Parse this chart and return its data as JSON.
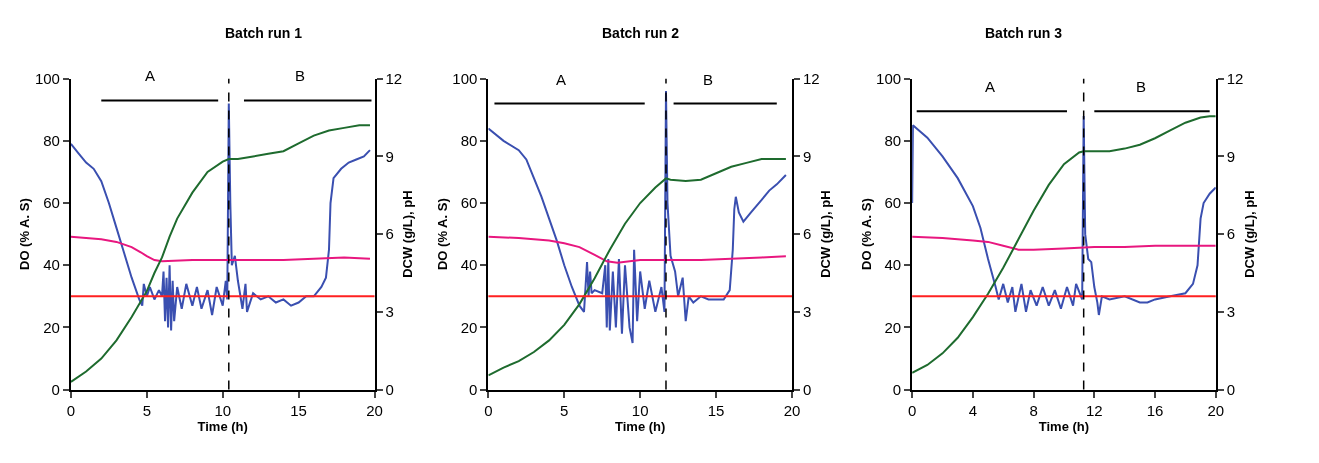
{
  "chart_data": [
    {
      "type": "line",
      "title": "Batch run 1",
      "xlabel": "Time (h)",
      "ylabel": "DO (% A. S)",
      "y2label": "DCW (g/L), pH",
      "xlim": [
        0,
        20
      ],
      "xticks": [
        0,
        5,
        10,
        15,
        20
      ],
      "ylim": [
        0,
        100
      ],
      "yticks": [
        0,
        20,
        40,
        60,
        80,
        100
      ],
      "y2lim": [
        0,
        12
      ],
      "y2ticks": [
        0,
        3,
        6,
        9,
        12
      ],
      "series": [
        {
          "color": "#3a4fb0",
          "x": [
            0,
            0.5,
            1,
            1.5,
            2,
            2.5,
            3,
            3.5,
            4,
            4.5,
            4.7,
            4.8,
            5,
            5.2,
            5.5,
            5.8,
            6.0,
            6.1,
            6.2,
            6.3,
            6.4,
            6.5,
            6.6,
            6.7,
            6.8,
            7,
            7.3,
            7.6,
            8,
            8.3,
            8.6,
            9,
            9.3,
            9.6,
            10,
            10.2,
            10.3,
            10.4,
            10.5,
            10.6,
            10.8,
            11,
            11.3,
            11.5,
            11.6,
            12,
            12.5,
            13,
            13.5,
            14,
            14.5,
            15,
            15.5,
            16,
            16.5,
            16.8,
            17.0,
            17.1,
            17.3,
            17.8,
            18.3,
            18.8,
            19.3,
            19.7
          ],
          "values": [
            79,
            76,
            73,
            71,
            67,
            60,
            52,
            44,
            36,
            29,
            27,
            34,
            30,
            33,
            29,
            32,
            30,
            38,
            22,
            36,
            20,
            40,
            19,
            35,
            22,
            33,
            26,
            34,
            27,
            33,
            26,
            32,
            24,
            33,
            27,
            35,
            29,
            92,
            60,
            40,
            43,
            35,
            26,
            34,
            25,
            31,
            29,
            30,
            28,
            29,
            27,
            28,
            30,
            30,
            33,
            36,
            45,
            60,
            68,
            71,
            73,
            74,
            75,
            77
          ]
        },
        {
          "color": "#e8177f",
          "axis": "y2",
          "x": [
            0,
            1,
            2,
            3,
            4,
            4.6,
            5,
            5.5,
            6,
            8,
            10,
            12,
            14,
            16,
            18,
            19.7
          ],
          "values": [
            5.9,
            5.85,
            5.8,
            5.7,
            5.5,
            5.3,
            5.15,
            5.0,
            4.95,
            5.0,
            5.0,
            5.0,
            5.0,
            5.05,
            5.1,
            5.05
          ]
        },
        {
          "color": "#1e6b2e",
          "axis": "y2",
          "x": [
            0,
            1,
            2,
            3,
            4,
            5,
            5.5,
            6,
            6.5,
            7,
            8,
            9,
            10,
            10.4,
            11,
            12,
            13,
            14,
            15,
            16,
            17,
            18,
            19,
            19.7
          ],
          "values": [
            0.3,
            0.7,
            1.2,
            1.9,
            2.8,
            3.8,
            4.5,
            5.1,
            5.9,
            6.6,
            7.6,
            8.4,
            8.8,
            8.9,
            8.9,
            9.0,
            9.1,
            9.2,
            9.5,
            9.8,
            10.0,
            10.1,
            10.2,
            10.2
          ]
        },
        {
          "color": "#000000",
          "x": [
            2,
            9.7
          ],
          "values": [
            93,
            93
          ]
        },
        {
          "color": "#000000",
          "x": [
            11.4,
            19.8
          ],
          "values": [
            93,
            93
          ]
        }
      ],
      "ref_lines": [
        {
          "axis": "y",
          "value": 30,
          "color": "#ff2020"
        },
        {
          "axis": "x",
          "value": 10.4,
          "color": "#000000",
          "line_style": "dashed"
        }
      ],
      "annotations": [
        {
          "text": "A",
          "x": 5.2,
          "y": 93
        },
        {
          "text": "B",
          "x": 15.1,
          "y": 93
        }
      ]
    },
    {
      "type": "line",
      "title": "Batch run 2",
      "xlabel": "Time (h)",
      "ylabel": "DO (% A. S)",
      "y2label": "DCW (g/L), pH",
      "xlim": [
        0,
        20
      ],
      "xticks": [
        0,
        5,
        10,
        15,
        20
      ],
      "ylim": [
        0,
        100
      ],
      "yticks": [
        0,
        20,
        40,
        60,
        80,
        100
      ],
      "y2lim": [
        0,
        12
      ],
      "y2ticks": [
        0,
        3,
        6,
        9,
        12
      ],
      "series": [
        {
          "color": "#3a4fb0",
          "x": [
            0,
            1,
            2,
            2.5,
            3,
            3.5,
            4,
            4.5,
            5,
            5.5,
            6,
            6.3,
            6.5,
            6.6,
            6.7,
            6.8,
            7,
            7.5,
            7.7,
            7.8,
            7.9,
            8.0,
            8.2,
            8.4,
            8.6,
            8.8,
            9,
            9.3,
            9.5,
            9.6,
            9.8,
            10,
            10.3,
            10.6,
            11,
            11.4,
            11.6,
            11.7,
            11.8,
            12,
            12.3,
            12.5,
            12.8,
            13,
            13.2,
            13.5,
            14,
            14.5,
            15,
            15.5,
            15.9,
            16.1,
            16.2,
            16.3,
            16.5,
            16.8,
            17.3,
            18,
            18.5,
            19,
            19.6
          ],
          "values": [
            84,
            80,
            77,
            74,
            68,
            62,
            55,
            48,
            40,
            33,
            27,
            25,
            41,
            30,
            38,
            31,
            32,
            31,
            40,
            20,
            42,
            19,
            38,
            20,
            42,
            18,
            40,
            20,
            15,
            45,
            22,
            38,
            26,
            35,
            25,
            33,
            25,
            96,
            60,
            43,
            38,
            30,
            36,
            22,
            30,
            28,
            30,
            29,
            29,
            29,
            32,
            45,
            58,
            62,
            57,
            54,
            57,
            61,
            64,
            66,
            69
          ]
        },
        {
          "color": "#e8177f",
          "axis": "y2",
          "x": [
            0,
            2,
            4,
            5,
            6,
            7,
            7.8,
            8.5,
            10,
            12,
            14,
            16,
            18,
            19.6
          ],
          "values": [
            5.9,
            5.85,
            5.75,
            5.65,
            5.5,
            5.2,
            4.95,
            4.9,
            5.0,
            5.0,
            5.0,
            5.05,
            5.1,
            5.15
          ]
        },
        {
          "color": "#1e6b2e",
          "axis": "y2",
          "x": [
            0,
            1,
            2,
            3,
            4,
            5,
            6,
            7,
            8,
            9,
            10,
            11,
            11.7,
            12,
            13,
            14,
            15,
            16,
            17,
            18,
            19.6
          ],
          "values": [
            0.55,
            0.85,
            1.1,
            1.45,
            1.9,
            2.5,
            3.3,
            4.3,
            5.4,
            6.4,
            7.2,
            7.8,
            8.15,
            8.1,
            8.05,
            8.1,
            8.35,
            8.6,
            8.75,
            8.9,
            8.9
          ]
        },
        {
          "color": "#000000",
          "x": [
            0.4,
            10.3
          ],
          "values": [
            92,
            92
          ]
        },
        {
          "color": "#000000",
          "x": [
            12.2,
            19.0
          ],
          "values": [
            92,
            92
          ]
        }
      ],
      "ref_lines": [
        {
          "axis": "y",
          "value": 30,
          "color": "#ff2020"
        },
        {
          "axis": "x",
          "value": 11.7,
          "color": "#000000",
          "line_style": "dashed"
        }
      ],
      "annotations": [
        {
          "text": "A",
          "x": 4.8,
          "y": 92
        },
        {
          "text": "B",
          "x": 14.5,
          "y": 92
        }
      ]
    },
    {
      "type": "line",
      "title": "Batch run 3",
      "xlabel": "Time (h)",
      "ylabel": "DO (% A. S)",
      "y2label": "DCW (g/L), pH",
      "xlim": [
        0,
        20
      ],
      "xticks": [
        0,
        4,
        8,
        12,
        16,
        20
      ],
      "ylim": [
        0,
        100
      ],
      "yticks": [
        0,
        20,
        40,
        60,
        80,
        100
      ],
      "y2lim": [
        0,
        12
      ],
      "y2ticks": [
        0,
        3,
        6,
        9,
        12
      ],
      "series": [
        {
          "color": "#3a4fb0",
          "x": [
            0,
            0.05,
            1,
            2,
            3,
            4,
            4.5,
            5,
            5.5,
            5.7,
            6,
            6.3,
            6.6,
            6.8,
            7.2,
            7.5,
            7.8,
            8.2,
            8.6,
            9,
            9.4,
            9.8,
            10.2,
            10.6,
            10.8,
            11.2,
            11.3,
            11.4,
            11.6,
            11.8,
            12,
            12.2,
            12.3,
            12.5,
            13,
            14,
            15,
            15.5,
            16,
            17,
            18,
            18.5,
            18.8,
            19,
            19.2,
            19.6,
            20
          ],
          "values": [
            60,
            85,
            81,
            75,
            68,
            59,
            52,
            42,
            33,
            29,
            34,
            28,
            33,
            25,
            34,
            25,
            32,
            27,
            33,
            27,
            32,
            26,
            33,
            27,
            34,
            29,
            88,
            50,
            42,
            41,
            33,
            28,
            24,
            30,
            29,
            30,
            28,
            28,
            29,
            30,
            31,
            34,
            40,
            55,
            60,
            63,
            65
          ]
        },
        {
          "color": "#e8177f",
          "axis": "y2",
          "x": [
            0,
            2,
            4,
            5,
            6,
            7,
            8,
            10,
            12,
            14,
            16,
            18,
            20
          ],
          "values": [
            5.9,
            5.85,
            5.75,
            5.7,
            5.55,
            5.4,
            5.4,
            5.45,
            5.5,
            5.5,
            5.55,
            5.55,
            5.55
          ]
        },
        {
          "color": "#1e6b2e",
          "axis": "y2",
          "x": [
            0,
            1,
            2,
            3,
            4,
            5,
            6,
            7,
            8,
            9,
            10,
            11,
            11.3,
            12,
            13,
            14,
            15,
            16,
            17,
            18,
            19,
            19.6,
            20
          ],
          "values": [
            0.65,
            0.95,
            1.4,
            2.0,
            2.8,
            3.7,
            4.7,
            5.8,
            6.9,
            7.9,
            8.7,
            9.15,
            9.2,
            9.2,
            9.2,
            9.3,
            9.45,
            9.7,
            10.0,
            10.3,
            10.5,
            10.55,
            10.55
          ]
        },
        {
          "color": "#000000",
          "x": [
            0.3,
            10.2
          ],
          "values": [
            89.5,
            89.5
          ]
        },
        {
          "color": "#000000",
          "x": [
            12.0,
            19.6
          ],
          "values": [
            89.5,
            89.5
          ]
        }
      ],
      "ref_lines": [
        {
          "axis": "y",
          "value": 30,
          "color": "#ff2020"
        },
        {
          "axis": "x",
          "value": 11.3,
          "color": "#000000",
          "line_style": "dashed"
        }
      ],
      "annotations": [
        {
          "text": "A",
          "x": 5.1,
          "y": 89.5
        },
        {
          "text": "B",
          "x": 15.1,
          "y": 89.5
        }
      ]
    }
  ]
}
